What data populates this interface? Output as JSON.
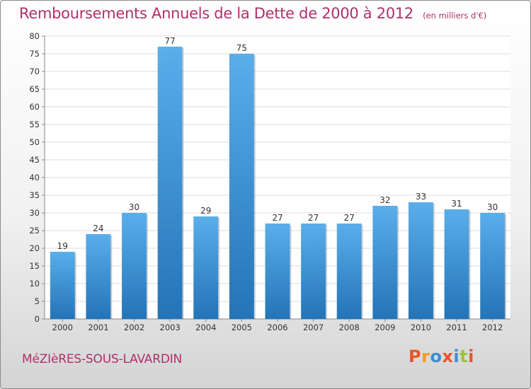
{
  "header": {
    "title": "Remboursements Annuels de la Dette de 2000 à 2012",
    "unit": "(en milliers d'€)"
  },
  "footer": {
    "commune": "MéZIèRES-SOUS-LAVARDIN",
    "logo": {
      "letters": [
        "P",
        "r",
        "o",
        "x",
        "i",
        "t",
        "i"
      ],
      "colors": [
        "#e8542b",
        "#f29b1f",
        "#3a8fd1",
        "#e8542b",
        "#3a8fd1",
        "#9ac23c",
        "#e8542b"
      ]
    }
  },
  "colors": {
    "title": "#b0306a",
    "bar_top": "#5aaeea",
    "bar_bottom": "#2374b8"
  },
  "chart_data": {
    "type": "bar",
    "title": "Remboursements Annuels de la Dette de 2000 à 2012",
    "xlabel": "",
    "ylabel": "",
    "categories": [
      "2000",
      "2001",
      "2002",
      "2003",
      "2004",
      "2005",
      "2006",
      "2007",
      "2008",
      "2009",
      "2010",
      "2011",
      "2012"
    ],
    "values": [
      19,
      24,
      30,
      77,
      29,
      75,
      27,
      27,
      27,
      32,
      33,
      31,
      30
    ],
    "ylim": [
      0,
      80
    ],
    "yticks": [
      0,
      5,
      10,
      15,
      20,
      25,
      30,
      35,
      40,
      45,
      50,
      55,
      60,
      65,
      70,
      75,
      80
    ],
    "grid": true,
    "data_labels": true
  }
}
